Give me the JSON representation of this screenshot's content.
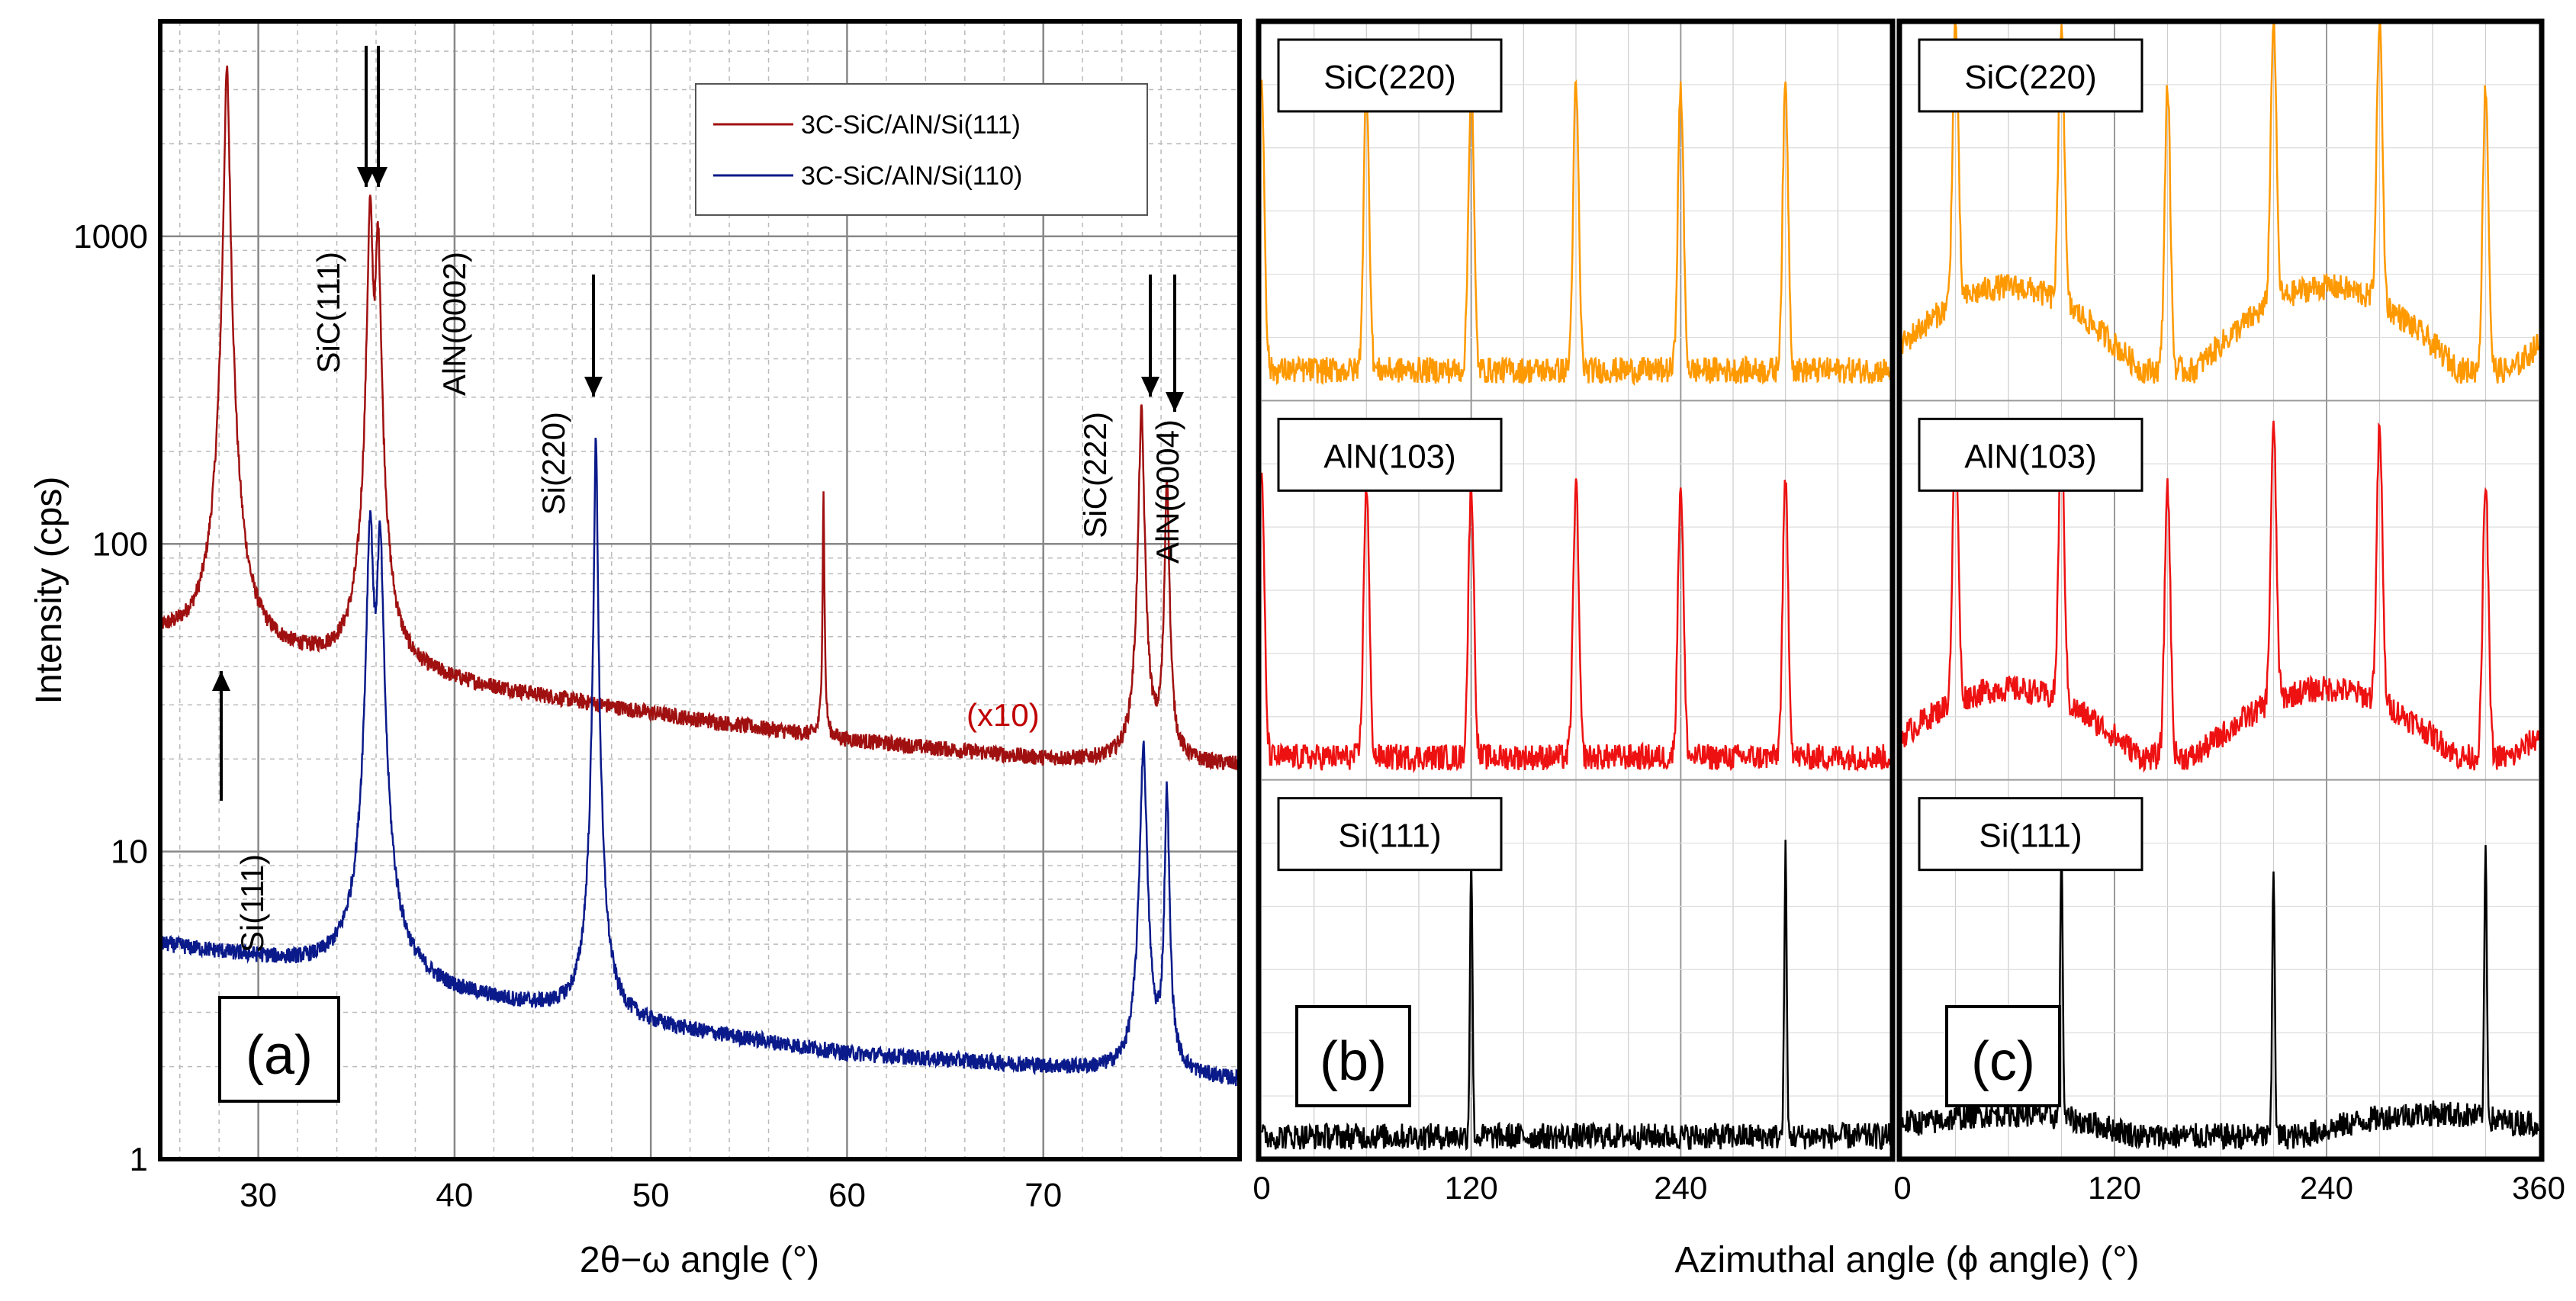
{
  "colors": {
    "sic111_trace": "#a01010",
    "sic110_trace": "#0a1a8a",
    "panel_sic220": "#ff9900",
    "panel_aln103": "#ee1111",
    "panel_si111": "#000000",
    "x10_label": "#c00000"
  },
  "chart_data": [
    {
      "id": "a",
      "type": "line",
      "panel_label": "(a)",
      "xlabel": "2θ−ω angle (°)",
      "ylabel": "Intensity (cps)",
      "xlim": [
        25,
        80
      ],
      "ylim": [
        1,
        5000
      ],
      "yscale": "log",
      "grid": true,
      "x_ticks": [
        30,
        40,
        50,
        60,
        70
      ],
      "y_ticks": [
        1,
        10,
        100,
        1000
      ],
      "y_tick_labels": [
        "1",
        "10",
        "100",
        "1000"
      ],
      "legend_placement": "top-right",
      "series": [
        {
          "name": "3C-SiC/AlN/Si(111)",
          "baseline": [
            [
              25,
              50
            ],
            [
              28,
              46
            ],
            [
              34,
              40
            ],
            [
              40,
              35
            ],
            [
              50,
              28
            ],
            [
              60,
              23
            ],
            [
              70,
              20
            ],
            [
              80,
              19
            ]
          ],
          "peaks": [
            {
              "x": 28.4,
              "y": 3500,
              "w": 0.25
            },
            {
              "x": 35.7,
              "y": 1250,
              "w": 0.25
            },
            {
              "x": 36.1,
              "y": 1000,
              "w": 0.25
            },
            {
              "x": 58.8,
              "y": 145,
              "w": 0.08
            },
            {
              "x": 75.0,
              "y": 270,
              "w": 0.25
            },
            {
              "x": 76.3,
              "y": 165,
              "w": 0.2
            }
          ]
        },
        {
          "name": "3C-SiC/AlN/Si(110)",
          "baseline": [
            [
              25,
              5
            ],
            [
              30,
              4.5
            ],
            [
              35,
              4.0
            ],
            [
              40,
              3.4
            ],
            [
              50,
              2.7
            ],
            [
              60,
              2.2
            ],
            [
              70,
              2.0
            ],
            [
              80,
              1.8
            ]
          ],
          "peaks": [
            {
              "x": 35.7,
              "y": 120,
              "w": 0.3
            },
            {
              "x": 36.2,
              "y": 105,
              "w": 0.3
            },
            {
              "x": 47.2,
              "y": 220,
              "w": 0.15
            },
            {
              "x": 75.1,
              "y": 22,
              "w": 0.3
            },
            {
              "x": 76.3,
              "y": 16,
              "w": 0.2
            }
          ]
        }
      ],
      "annotations": [
        {
          "text": "Si(111)",
          "x": 27.3,
          "arrow": "up"
        },
        {
          "text": "SiC(111)",
          "x": 35.8,
          "arrow": "down"
        },
        {
          "text": "AlN(0002)",
          "x": 36.3,
          "arrow": "down"
        },
        {
          "text": "Si(220)",
          "x": 47.2,
          "arrow": "down"
        },
        {
          "text": "SiC(222)",
          "x": 75.2,
          "arrow": "down"
        },
        {
          "text": "AlN(0004)",
          "x": 76.4,
          "arrow": "down"
        },
        {
          "text": "(x10)",
          "x": 68.5
        }
      ]
    },
    {
      "id": "b",
      "type": "line",
      "panel_label": "(b)",
      "xlim": [
        0,
        360
      ],
      "x_ticks": [
        0,
        120,
        240
      ],
      "subplots": [
        {
          "name": "SiC(220)",
          "peak_phi": [
            0,
            60,
            120,
            180,
            240,
            300
          ],
          "peak_height": 0.75,
          "baseline": 0.08
        },
        {
          "name": "AlN(103)",
          "peak_phi": [
            0,
            60,
            120,
            180,
            240,
            300
          ],
          "peak_height": 0.72,
          "baseline": 0.06
        },
        {
          "name": "Si(111)",
          "peak_phi": [
            120,
            300
          ],
          "peak_height": 0.75,
          "baseline": 0.06
        }
      ]
    },
    {
      "id": "c",
      "type": "line",
      "panel_label": "(c)",
      "xlabel": "Azimuthal angle (ϕ angle) (°)",
      "xlim": [
        0,
        360
      ],
      "x_ticks": [
        0,
        120,
        240,
        360
      ],
      "subplots": [
        {
          "name": "SiC(220)",
          "peak_phi": [
            30,
            90,
            150,
            210,
            270,
            330
          ],
          "peak_height": 0.75,
          "baseline": 0.08,
          "hump_centers": [
            60,
            240
          ],
          "hump_height": 0.22
        },
        {
          "name": "AlN(103)",
          "peak_phi": [
            30,
            90,
            150,
            210,
            270,
            330
          ],
          "peak_height": 0.72,
          "baseline": 0.06,
          "hump_centers": [
            60,
            240
          ],
          "hump_height": 0.18
        },
        {
          "name": "Si(111)",
          "peak_phi": [
            90,
            210,
            330
          ],
          "peak_height": 0.72,
          "baseline": 0.06,
          "hump_centers": [
            60,
            300
          ],
          "hump_height": 0.06
        }
      ]
    }
  ],
  "tick_label_rotation_note": ""
}
